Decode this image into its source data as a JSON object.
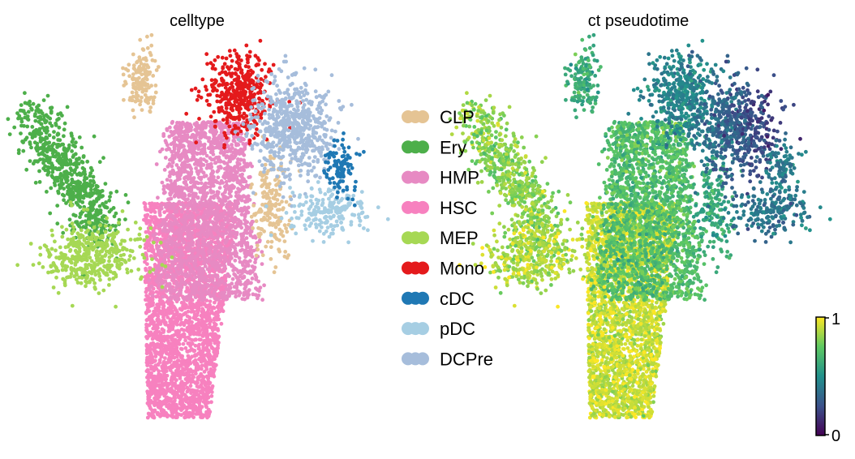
{
  "chart_data": [
    {
      "type": "scatter",
      "title": "celltype",
      "color_by": "category",
      "legend": {
        "placement": "right",
        "entries": [
          {
            "label": "CLP",
            "color": "#e5c494"
          },
          {
            "label": "Ery",
            "color": "#4daf4a"
          },
          {
            "label": "HMP",
            "color": "#e78ac3"
          },
          {
            "label": "HSC",
            "color": "#f781bf"
          },
          {
            "label": "MEP",
            "color": "#a6d854"
          },
          {
            "label": "Mono",
            "color": "#e41a1c"
          },
          {
            "label": "cDC",
            "color": "#1f78b4"
          },
          {
            "label": "pDC",
            "color": "#a6cee3"
          },
          {
            "label": "DCPre",
            "color": "#a6bddb"
          }
        ]
      },
      "clusters": [
        {
          "category": "HSC",
          "n": 2600,
          "shape": "stem"
        },
        {
          "category": "HMP",
          "n": 1900,
          "shape": "core"
        },
        {
          "category": "Ery",
          "n": 650,
          "shape": "ery"
        },
        {
          "category": "MEP",
          "n": 420,
          "shape": "mep"
        },
        {
          "category": "CLP",
          "n": 330,
          "shape": "clp"
        },
        {
          "category": "Mono",
          "n": 420,
          "shape": "mono"
        },
        {
          "category": "DCPre",
          "n": 600,
          "shape": "dcpre"
        },
        {
          "category": "pDC",
          "n": 200,
          "shape": "pdc"
        },
        {
          "category": "cDC",
          "n": 110,
          "shape": "cdc"
        }
      ],
      "grid": false,
      "axes": false
    },
    {
      "type": "scatter",
      "title": "ct pseudotime",
      "color_by": "continuous",
      "colormap": "viridis",
      "colorbar": {
        "min": 0,
        "max": 1,
        "ticks": [
          "0",
          "1"
        ],
        "placement": "bottom-right"
      },
      "grid": false,
      "axes": false
    }
  ]
}
